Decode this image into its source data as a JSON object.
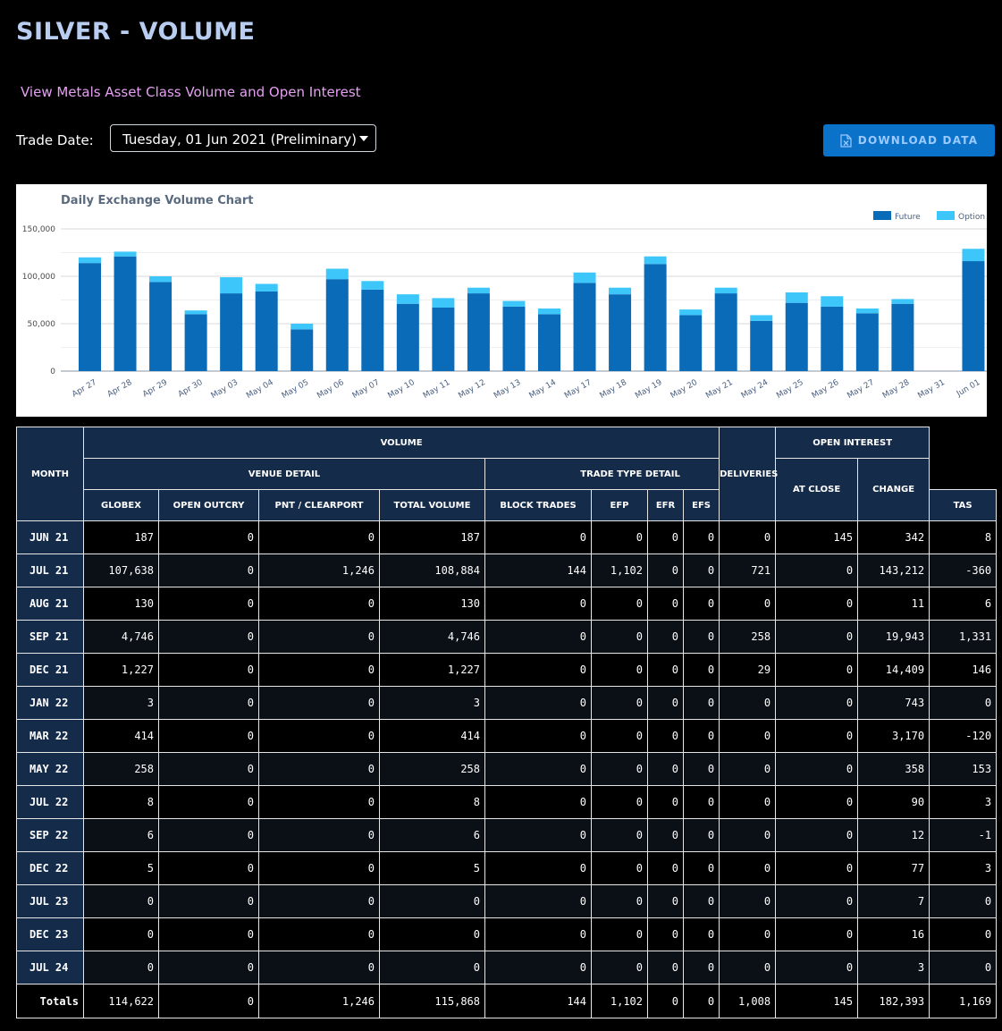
{
  "page": {
    "title": "SILVER - VOLUME"
  },
  "asset_link": "View Metals Asset Class Volume and Open Interest",
  "trade_date": {
    "label": "Trade Date:",
    "value": "Tuesday, 01 Jun 2021 (Preliminary)"
  },
  "download": {
    "label": "DOWNLOAD DATA",
    "icon": "excel-file-icon"
  },
  "colors": {
    "future": "#0a6bb8",
    "option": "#3cc6fa",
    "header_bg": "#142b4a",
    "link": "#e6a0f2"
  },
  "chart_data": {
    "type": "bar",
    "stacked": true,
    "title": "Daily Exchange Volume Chart",
    "legend": [
      "Future",
      "Option"
    ],
    "legend_position": "top-right",
    "ylim": [
      0,
      150000
    ],
    "yticks": [
      "0",
      "50,000",
      "100,000",
      "150,000"
    ],
    "categories": [
      "Apr 27",
      "Apr 28",
      "Apr 29",
      "Apr 30",
      "May 03",
      "May 04",
      "May 05",
      "May 06",
      "May 07",
      "May 10",
      "May 11",
      "May 12",
      "May 13",
      "May 14",
      "May 17",
      "May 18",
      "May 19",
      "May 20",
      "May 21",
      "May 24",
      "May 25",
      "May 26",
      "May 27",
      "May 28",
      "May 31",
      "Jun 01"
    ],
    "series": [
      {
        "name": "Future",
        "values": [
          114000,
          121000,
          94000,
          60000,
          82000,
          84000,
          44000,
          97000,
          86000,
          71000,
          67000,
          82000,
          68000,
          60000,
          93000,
          81000,
          113000,
          59000,
          82000,
          53000,
          72000,
          68000,
          61000,
          71000,
          0,
          116000
        ]
      },
      {
        "name": "Option",
        "values": [
          6000,
          5000,
          6000,
          4000,
          17000,
          8000,
          6000,
          11000,
          9000,
          10000,
          10000,
          6000,
          6000,
          6000,
          11000,
          7000,
          8000,
          6000,
          6000,
          6000,
          11000,
          11000,
          5000,
          5000,
          0,
          13000
        ]
      }
    ]
  },
  "table": {
    "headers": {
      "month": "MONTH",
      "volume": "VOLUME",
      "venue_detail": "VENUE DETAIL",
      "trade_type_detail": "TRADE TYPE DETAIL",
      "deliveries": "DELIVERIES",
      "open_interest": "OPEN INTEREST",
      "globex": "GLOBEX",
      "open_outcry": "OPEN OUTCRY",
      "pnt_clearport": "PNT / CLEARPORT",
      "total_volume": "TOTAL VOLUME",
      "block_trades": "BLOCK TRADES",
      "efp": "EFP",
      "efr": "EFR",
      "efs": "EFS",
      "tas": "TAS",
      "at_close": "AT CLOSE",
      "change": "CHANGE"
    },
    "rows": [
      [
        "JUN 21",
        "187",
        "0",
        "0",
        "187",
        "0",
        "0",
        "0",
        "0",
        "0",
        "145",
        "342",
        "8"
      ],
      [
        "JUL 21",
        "107,638",
        "0",
        "1,246",
        "108,884",
        "144",
        "1,102",
        "0",
        "0",
        "721",
        "0",
        "143,212",
        "-360"
      ],
      [
        "AUG 21",
        "130",
        "0",
        "0",
        "130",
        "0",
        "0",
        "0",
        "0",
        "0",
        "0",
        "11",
        "6"
      ],
      [
        "SEP 21",
        "4,746",
        "0",
        "0",
        "4,746",
        "0",
        "0",
        "0",
        "0",
        "258",
        "0",
        "19,943",
        "1,331"
      ],
      [
        "DEC 21",
        "1,227",
        "0",
        "0",
        "1,227",
        "0",
        "0",
        "0",
        "0",
        "29",
        "0",
        "14,409",
        "146"
      ],
      [
        "JAN 22",
        "3",
        "0",
        "0",
        "3",
        "0",
        "0",
        "0",
        "0",
        "0",
        "0",
        "743",
        "0"
      ],
      [
        "MAR 22",
        "414",
        "0",
        "0",
        "414",
        "0",
        "0",
        "0",
        "0",
        "0",
        "0",
        "3,170",
        "-120"
      ],
      [
        "MAY 22",
        "258",
        "0",
        "0",
        "258",
        "0",
        "0",
        "0",
        "0",
        "0",
        "0",
        "358",
        "153"
      ],
      [
        "JUL 22",
        "8",
        "0",
        "0",
        "8",
        "0",
        "0",
        "0",
        "0",
        "0",
        "0",
        "90",
        "3"
      ],
      [
        "SEP 22",
        "6",
        "0",
        "0",
        "6",
        "0",
        "0",
        "0",
        "0",
        "0",
        "0",
        "12",
        "-1"
      ],
      [
        "DEC 22",
        "5",
        "0",
        "0",
        "5",
        "0",
        "0",
        "0",
        "0",
        "0",
        "0",
        "77",
        "3"
      ],
      [
        "JUL 23",
        "0",
        "0",
        "0",
        "0",
        "0",
        "0",
        "0",
        "0",
        "0",
        "0",
        "7",
        "0"
      ],
      [
        "DEC 23",
        "0",
        "0",
        "0",
        "0",
        "0",
        "0",
        "0",
        "0",
        "0",
        "0",
        "16",
        "0"
      ],
      [
        "JUL 24",
        "0",
        "0",
        "0",
        "0",
        "0",
        "0",
        "0",
        "0",
        "0",
        "0",
        "3",
        "0"
      ]
    ],
    "totals": [
      "Totals",
      "114,622",
      "0",
      "1,246",
      "115,868",
      "144",
      "1,102",
      "0",
      "0",
      "1,008",
      "145",
      "182,393",
      "1,169"
    ]
  }
}
